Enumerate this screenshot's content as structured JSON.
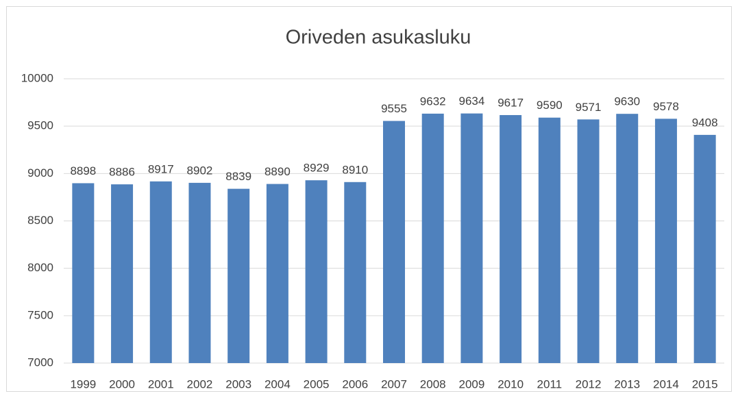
{
  "chart_data": {
    "type": "bar",
    "title": "Oriveden asukasluku",
    "categories": [
      "1999",
      "2000",
      "2001",
      "2002",
      "2003",
      "2004",
      "2005",
      "2006",
      "2007",
      "2008",
      "2009",
      "2010",
      "2011",
      "2012",
      "2013",
      "2014",
      "2015"
    ],
    "values": [
      8898,
      8886,
      8917,
      8902,
      8839,
      8890,
      8929,
      8910,
      9555,
      9632,
      9634,
      9617,
      9590,
      9571,
      9630,
      9578,
      9408
    ],
    "color": "#4f81bd",
    "ylim": [
      7000,
      10000
    ],
    "yticks": [
      7000,
      7500,
      8000,
      8500,
      9000,
      9500,
      10000
    ],
    "grid": true
  }
}
